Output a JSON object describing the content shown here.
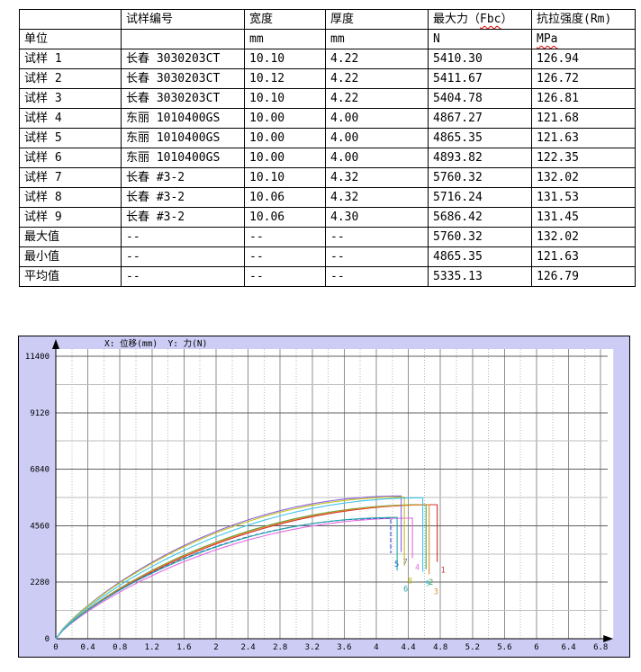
{
  "table": {
    "header": {
      "c0": "",
      "c1": "试样编号",
      "c2": "宽度",
      "c3": "厚度",
      "c4_pre": "最大力（",
      "c4_wavy": "Fbc",
      "c4_suf": "）",
      "c5": "抗拉强度(Rm)"
    },
    "units": {
      "c0": "单位",
      "c1": "",
      "c2": "mm",
      "c3": "mm",
      "c4": "N",
      "c5_wavy": "MPa"
    },
    "rows": [
      [
        "试样 1",
        "长春 3030203CT",
        "10.10",
        "4.22",
        "5410.30",
        "126.94"
      ],
      [
        "试样 2",
        "长春 3030203CT",
        "10.12",
        "4.22",
        "5411.67",
        "126.72"
      ],
      [
        "试样 3",
        "长春 3030203CT",
        "10.10",
        "4.22",
        "5404.78",
        "126.81"
      ],
      [
        "试样 4",
        "东丽 1010400GS",
        "10.00",
        "4.00",
        "4867.27",
        "121.68"
      ],
      [
        "试样 5",
        "东丽 1010400GS",
        "10.00",
        "4.00",
        "4865.35",
        "121.63"
      ],
      [
        "试样 6",
        "东丽 1010400GS",
        "10.00",
        "4.00",
        "4893.82",
        "122.35"
      ],
      [
        "试样 7",
        "长春 #3-2",
        "10.10",
        "4.32",
        "5760.32",
        "132.02"
      ],
      [
        "试样 8",
        "长春 #3-2",
        "10.06",
        "4.32",
        "5716.24",
        "131.53"
      ],
      [
        "试样 9",
        "长春 #3-2",
        "10.06",
        "4.30",
        "5686.42",
        "131.45"
      ],
      [
        "最大值",
        "--",
        "--",
        "--",
        "5760.32",
        "132.02"
      ],
      [
        "最小值",
        "--",
        "--",
        "--",
        "4865.35",
        "121.63"
      ],
      [
        "平均值",
        "--",
        "--",
        "--",
        "5335.13",
        "126.79"
      ]
    ]
  },
  "chart_data": {
    "type": "line",
    "title": "X: 位移(mm)  Y: 力(N)",
    "xlabel": "位移(mm)",
    "ylabel": "力(N)",
    "xlim": [
      0,
      6.8
    ],
    "ylim": [
      0,
      11400
    ],
    "x_major_step": 0.4,
    "x_minor_step": 0.2,
    "y_major_step": 2280,
    "y_minor_step": 1140,
    "grid": "on",
    "panel_bg": "#ccccf5",
    "plot_bg": "#ffffff",
    "x_ticks": [
      0,
      0.4,
      0.8,
      1.2,
      1.6,
      2,
      2.4,
      2.8,
      3.2,
      3.6,
      4,
      4.4,
      4.8,
      5.2,
      5.6,
      6,
      6.4,
      6.8
    ],
    "y_ticks": [
      0,
      2280,
      4560,
      6840,
      9120,
      11400
    ],
    "series": [
      {
        "id": "1",
        "color": "#d43030",
        "peak": 5410.3,
        "break_x": 4.76,
        "drop_end": 3100,
        "dash": false,
        "label_offset": [
          4,
          12
        ]
      },
      {
        "id": "2",
        "color": "#3aa63a",
        "peak": 5411.67,
        "break_x": 4.62,
        "drop_end": 2800,
        "dash": false,
        "label_offset": [
          3,
          17
        ]
      },
      {
        "id": "3",
        "color": "#dd8a2e",
        "peak": 5404.78,
        "break_x": 4.66,
        "drop_end": 2600,
        "dash": false,
        "label_offset": [
          5,
          22
        ]
      },
      {
        "id": "4",
        "color": "#e46ae4",
        "peak": 4867.27,
        "break_x": 4.45,
        "drop_end": 3250,
        "dash": false,
        "label_offset": [
          3,
          13
        ]
      },
      {
        "id": "5",
        "color": "#2a4ac8",
        "peak": 4865.35,
        "break_x": 4.18,
        "drop_end": 3450,
        "dash": true,
        "label_offset": [
          4,
          15
        ]
      },
      {
        "id": "6",
        "color": "#22a8a8",
        "peak": 4893.82,
        "break_x": 4.26,
        "drop_end": 2750,
        "dash": false,
        "label_offset": [
          7,
          23
        ]
      },
      {
        "id": "7",
        "color": "#8a62dc",
        "peak": 5760.32,
        "break_x": 4.31,
        "drop_end": 3500,
        "dash": false,
        "label_offset": [
          2,
          14
        ]
      },
      {
        "id": "8",
        "color": "#c2c21e",
        "peak": 5716.24,
        "break_x": 4.35,
        "drop_end": 2950,
        "dash": false,
        "label_offset": [
          4,
          20
        ]
      },
      {
        "id": "9",
        "color": "#3ec4ea",
        "peak": 5686.42,
        "break_x": 4.58,
        "drop_end": 2700,
        "dash": false,
        "label_offset": [
          3,
          16
        ]
      }
    ]
  }
}
